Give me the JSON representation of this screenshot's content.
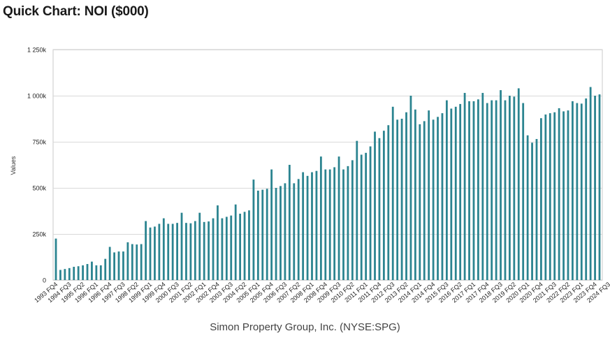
{
  "header": {
    "title": "Quick Chart: NOI ($000)"
  },
  "chart_data": {
    "type": "bar",
    "title": "Quick Chart: NOI ($000)",
    "xlabel": "Simon Property Group, Inc. (NYSE:SPG)",
    "ylabel": "Values",
    "ylim": [
      0,
      1250000
    ],
    "yticks": [
      0,
      250000,
      500000,
      750000,
      1000000,
      1250000
    ],
    "ytick_labels": [
      "0",
      "250k",
      "500k",
      "750k",
      "1 000k",
      "1 250k"
    ],
    "grid": true,
    "bar_color": "#2b8490",
    "xtick_labels": [
      "1993 FQ4",
      "1994 FQ3",
      "1995 FQ2",
      "1996 FQ1",
      "1996 FQ4",
      "1997 FQ3",
      "1998 FQ2",
      "1999 FQ1",
      "1999 FQ4",
      "2000 FQ3",
      "2001 FQ2",
      "2002 FQ1",
      "2002 FQ4",
      "2003 FQ3",
      "2004 FQ2",
      "2005 FQ1",
      "2005 FQ4",
      "2006 FQ3",
      "2007 FQ2",
      "2008 FQ1",
      "2008 FQ4",
      "2009 FQ3",
      "2010 FQ2",
      "2011 FQ1",
      "2011 FQ4",
      "2012 FQ3",
      "2013 FQ2",
      "2014 FQ1",
      "2014 FQ4",
      "2015 FQ3",
      "2016 FQ2",
      "2017 FQ1",
      "2017 FQ4",
      "2018 FQ3",
      "2019 FQ2",
      "2020 FQ1",
      "2020 FQ4",
      "2021 FQ3",
      "2022 FQ2",
      "2023 FQ1",
      "2023 FQ4",
      "2024 FQ3"
    ],
    "tick_every": 3,
    "start_period": "1993 FQ4",
    "values": [
      225000,
      55000,
      60000,
      65000,
      72000,
      75000,
      80000,
      87000,
      100000,
      80000,
      80000,
      115000,
      180000,
      150000,
      155000,
      155000,
      205000,
      195000,
      193000,
      195000,
      320000,
      285000,
      290000,
      305000,
      335000,
      305000,
      305000,
      310000,
      365000,
      310000,
      308000,
      320000,
      365000,
      315000,
      318000,
      335000,
      405000,
      335000,
      343000,
      350000,
      410000,
      360000,
      370000,
      378000,
      545000,
      485000,
      490000,
      495000,
      600000,
      500000,
      510000,
      525000,
      625000,
      525000,
      548000,
      585000,
      565000,
      585000,
      592000,
      670000,
      600000,
      600000,
      612000,
      670000,
      600000,
      618000,
      650000,
      755000,
      680000,
      690000,
      725000,
      805000,
      770000,
      810000,
      840000,
      940000,
      870000,
      875000,
      910000,
      1000000,
      925000,
      845000,
      862000,
      920000,
      870000,
      885000,
      905000,
      975000,
      930000,
      940000,
      955000,
      1015000,
      970000,
      970000,
      980000,
      1015000,
      960000,
      975000,
      975000,
      1030000,
      975000,
      1000000,
      995000,
      1040000,
      960000,
      785000,
      745000,
      765000,
      878000,
      898000,
      905000,
      910000,
      932000,
      915000,
      920000,
      970000,
      960000,
      957000,
      985000,
      1047000,
      1000000,
      1007000
    ]
  }
}
